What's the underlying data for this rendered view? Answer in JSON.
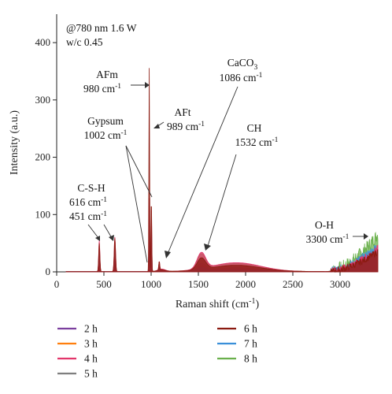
{
  "chart_data": {
    "type": "line",
    "xlabel": "Raman shift (cm",
    "xlabel_sup": "-1",
    "xlabel_tail": ")",
    "ylabel": "Intensity (a.u.)",
    "xlim": [
      0,
      3400
    ],
    "ylim": [
      0,
      440
    ],
    "xticks": [
      0,
      500,
      1000,
      1500,
      2000,
      2500,
      3000
    ],
    "yticks": [
      0,
      100,
      200,
      300,
      400
    ],
    "grid": false,
    "legend_placement": "bottom",
    "conditions": [
      "@780 nm 1.6 W",
      "w/c 0.45"
    ],
    "annotations": {
      "afm": [
        "AFm",
        "980 cm",
        "-1"
      ],
      "gypsum": [
        "Gypsum",
        "1002 cm",
        "-1"
      ],
      "aft": [
        "AFt",
        "989 cm",
        "-1"
      ],
      "caco3": [
        "CaCO",
        "3",
        "1086 cm",
        "-1"
      ],
      "ch": [
        "CH",
        "1532 cm",
        "-1"
      ],
      "csh": [
        "C-S-H",
        "616 cm",
        "-1",
        "451 cm",
        "-1"
      ],
      "oh": [
        "O-H",
        "3300 cm",
        "-1"
      ]
    },
    "series": [
      {
        "name": "2 h",
        "color": "#7b3f9e",
        "peak451": 18,
        "peak616": 22,
        "peak980": 30,
        "peak1002": 25,
        "broad": 4,
        "oh": 8
      },
      {
        "name": "3 h",
        "color": "#ff7f0e",
        "peak451": 28,
        "peak616": 30,
        "peak980": 60,
        "peak1002": 50,
        "broad": 8,
        "oh": 14
      },
      {
        "name": "4 h",
        "color": "#e2366b",
        "peak451": 55,
        "peak616": 60,
        "peak980": 128,
        "peak1002": 120,
        "broad": 28,
        "oh": 40
      },
      {
        "name": "5 h",
        "color": "#7f7f7f",
        "peak451": 35,
        "peak616": 38,
        "peak980": 90,
        "peak1002": 80,
        "broad": 12,
        "oh": 25
      },
      {
        "name": "6 h",
        "color": "#8b1a10",
        "peak451": 50,
        "peak616": 58,
        "peak980": 355,
        "peak1002": 128,
        "broad": 20,
        "oh": 35
      },
      {
        "name": "7 h",
        "color": "#3a8fd9",
        "peak451": 30,
        "peak616": 35,
        "peak980": 95,
        "peak1002": 85,
        "broad": 6,
        "oh": 45
      },
      {
        "name": "8 h",
        "color": "#6ab04c",
        "peak451": 40,
        "peak616": 45,
        "peak980": 115,
        "peak1002": 105,
        "broad": 26,
        "oh": 65
      }
    ]
  }
}
